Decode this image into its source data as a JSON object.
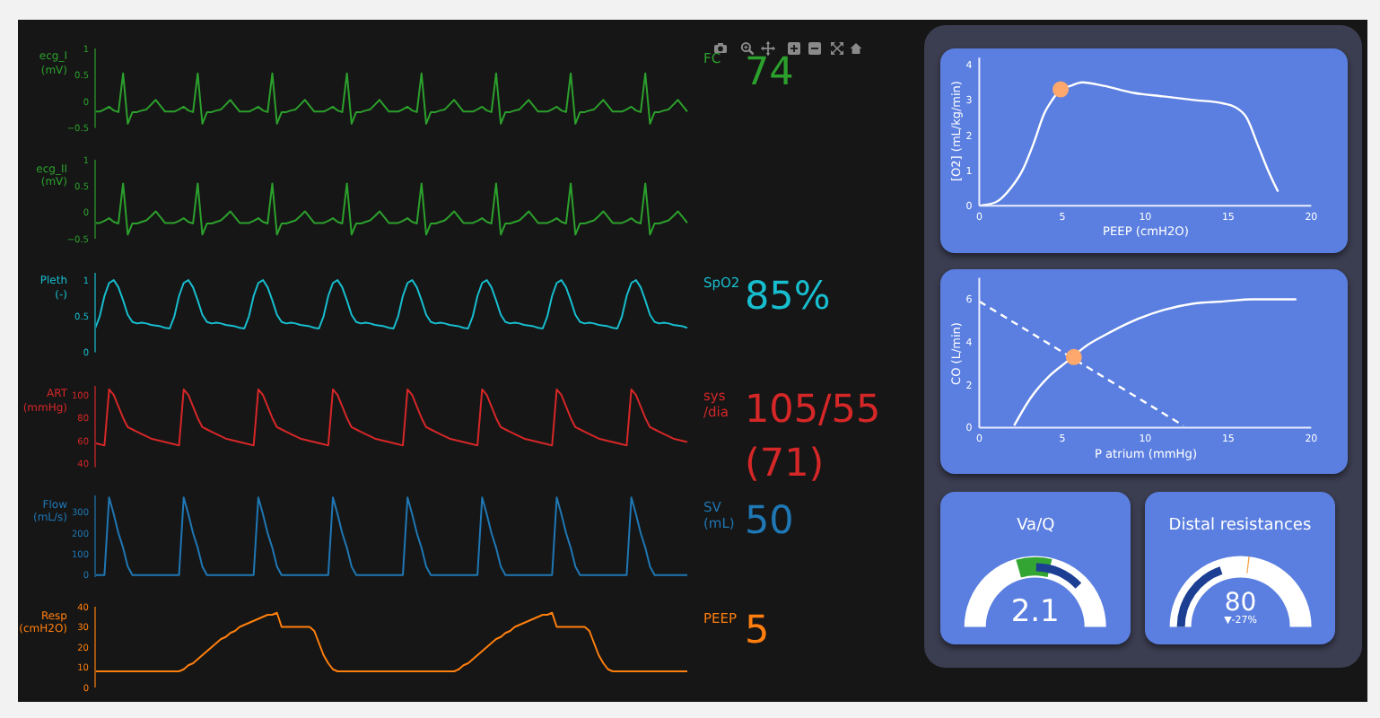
{
  "chart_data": [
    {
      "type": "line",
      "ylabel": "ecg_I (mV)",
      "tick_labels": "y",
      "ylim": [
        -0.5,
        1
      ],
      "yticks": [
        {
          "value": -0.5,
          "label": "−0.5"
        },
        0,
        0.5,
        1
      ],
      "annotations": [
        "FC",
        "74"
      ],
      "categories": [
        null,
        null,
        null,
        null,
        null,
        null,
        null,
        null,
        null,
        null,
        null,
        null,
        null,
        null,
        null,
        null,
        null,
        null,
        null,
        null,
        null,
        null,
        null,
        null,
        null,
        null,
        null,
        null,
        null,
        null,
        null,
        null,
        null,
        null,
        null,
        null,
        null,
        null,
        null,
        null,
        null,
        null,
        null,
        null,
        null,
        null,
        null,
        null,
        null,
        null,
        null,
        null,
        null,
        null,
        null,
        null,
        null,
        null,
        null,
        null,
        null,
        null,
        null,
        null,
        null,
        null,
        null,
        null,
        null,
        null,
        null,
        null,
        null,
        null,
        null,
        null,
        null,
        null,
        null,
        null,
        null,
        null,
        null,
        null,
        null,
        null,
        null,
        null,
        null,
        null,
        null,
        null,
        null,
        null,
        null,
        null,
        null,
        null,
        null,
        null,
        null,
        null,
        null,
        null,
        null,
        null,
        null,
        null,
        null,
        null,
        null,
        null,
        null,
        null,
        null,
        null,
        null,
        null,
        null,
        null,
        null,
        null,
        null,
        null,
        null,
        null,
        null,
        null
      ],
      "series": [
        {
          "color": "#2ca02c",
          "values": [
            -0.19,
            -0.19,
            -0.15,
            -0.1,
            -0.17,
            -0.2,
            0.53,
            -0.42,
            -0.2,
            -0.2,
            -0.17,
            -0.15,
            -0.06,
            0.03,
            -0.08,
            -0.19,
            -0.19,
            -0.19,
            -0.15,
            -0.1,
            -0.17,
            -0.2,
            0.53,
            -0.42,
            -0.2,
            -0.2,
            -0.17,
            -0.15,
            -0.06,
            0.03,
            -0.08,
            -0.19,
            -0.19,
            -0.19,
            -0.15,
            -0.1,
            -0.17,
            -0.2,
            0.53,
            -0.42,
            -0.2,
            -0.2,
            -0.17,
            -0.15,
            -0.06,
            0.03,
            -0.08,
            -0.19,
            -0.19,
            -0.19,
            -0.15,
            -0.1,
            -0.17,
            -0.2,
            0.53,
            -0.42,
            -0.2,
            -0.2,
            -0.17,
            -0.15,
            -0.06,
            0.03,
            -0.08,
            -0.19,
            -0.19,
            -0.19,
            -0.15,
            -0.1,
            -0.17,
            -0.2,
            0.53,
            -0.42,
            -0.2,
            -0.2,
            -0.17,
            -0.15,
            -0.06,
            0.03,
            -0.08,
            -0.19,
            -0.19,
            -0.19,
            -0.15,
            -0.1,
            -0.17,
            -0.2,
            0.53,
            -0.42,
            -0.2,
            -0.2,
            -0.17,
            -0.15,
            -0.06,
            0.03,
            -0.08,
            -0.19,
            -0.19,
            -0.19,
            -0.15,
            -0.1,
            -0.17,
            -0.2,
            0.53,
            -0.42,
            -0.2,
            -0.2,
            -0.17,
            -0.15,
            -0.06,
            0.03,
            -0.08,
            -0.19,
            -0.19,
            -0.19,
            -0.15,
            -0.1,
            -0.17,
            -0.2,
            0.53,
            -0.42,
            -0.2,
            -0.2,
            -0.17,
            -0.15,
            -0.06,
            0.03,
            -0.08,
            -0.19
          ]
        }
      ]
    },
    {
      "type": "line",
      "ylabel": "ecg_II (mV)",
      "tick_labels": "y",
      "ylim": [
        -0.5,
        1
      ],
      "yticks": [
        {
          "value": -0.5,
          "label": "−0.5"
        },
        0,
        0.5,
        1
      ],
      "categories": [
        null,
        null,
        null,
        null,
        null,
        null,
        null,
        null,
        null,
        null,
        null,
        null,
        null,
        null,
        null,
        null,
        null,
        null,
        null,
        null,
        null,
        null,
        null,
        null,
        null,
        null,
        null,
        null,
        null,
        null,
        null,
        null,
        null,
        null,
        null,
        null,
        null,
        null,
        null,
        null,
        null,
        null,
        null,
        null,
        null,
        null,
        null,
        null,
        null,
        null,
        null,
        null,
        null,
        null,
        null,
        null,
        null,
        null,
        null,
        null,
        null,
        null,
        null,
        null,
        null,
        null,
        null,
        null,
        null,
        null,
        null,
        null,
        null,
        null,
        null,
        null,
        null,
        null,
        null,
        null,
        null,
        null,
        null,
        null,
        null,
        null,
        null,
        null,
        null,
        null,
        null,
        null,
        null,
        null,
        null,
        null,
        null,
        null,
        null,
        null,
        null,
        null,
        null,
        null,
        null,
        null,
        null,
        null,
        null,
        null,
        null,
        null,
        null,
        null,
        null,
        null,
        null,
        null,
        null,
        null,
        null,
        null,
        null,
        null,
        null,
        null,
        null,
        null
      ],
      "series": [
        {
          "color": "#2ca02c",
          "values": [
            -0.2,
            -0.2,
            -0.16,
            -0.11,
            -0.18,
            -0.21,
            0.55,
            -0.42,
            -0.21,
            -0.21,
            -0.18,
            -0.15,
            -0.07,
            0.02,
            -0.09,
            -0.2,
            -0.2,
            -0.2,
            -0.16,
            -0.11,
            -0.18,
            -0.21,
            0.55,
            -0.42,
            -0.21,
            -0.21,
            -0.18,
            -0.15,
            -0.07,
            0.02,
            -0.09,
            -0.2,
            -0.2,
            -0.2,
            -0.16,
            -0.11,
            -0.18,
            -0.21,
            0.55,
            -0.42,
            -0.21,
            -0.21,
            -0.18,
            -0.15,
            -0.07,
            0.02,
            -0.09,
            -0.2,
            -0.2,
            -0.2,
            -0.16,
            -0.11,
            -0.18,
            -0.21,
            0.55,
            -0.42,
            -0.21,
            -0.21,
            -0.18,
            -0.15,
            -0.07,
            0.02,
            -0.09,
            -0.2,
            -0.2,
            -0.2,
            -0.16,
            -0.11,
            -0.18,
            -0.21,
            0.55,
            -0.42,
            -0.21,
            -0.21,
            -0.18,
            -0.15,
            -0.07,
            0.02,
            -0.09,
            -0.2,
            -0.2,
            -0.2,
            -0.16,
            -0.11,
            -0.18,
            -0.21,
            0.55,
            -0.42,
            -0.21,
            -0.21,
            -0.18,
            -0.15,
            -0.07,
            0.02,
            -0.09,
            -0.2,
            -0.2,
            -0.2,
            -0.16,
            -0.11,
            -0.18,
            -0.21,
            0.55,
            -0.42,
            -0.21,
            -0.21,
            -0.18,
            -0.15,
            -0.07,
            0.02,
            -0.09,
            -0.2,
            -0.2,
            -0.2,
            -0.16,
            -0.11,
            -0.18,
            -0.21,
            0.55,
            -0.42,
            -0.21,
            -0.21,
            -0.18,
            -0.15,
            -0.07,
            0.02,
            -0.09,
            -0.2
          ]
        }
      ]
    },
    {
      "type": "line",
      "ylabel": "Pleth (-)",
      "tick_labels": "y",
      "ylim": [
        0,
        1.1
      ],
      "yticks": [
        0,
        0.5,
        1
      ],
      "annotations": [
        "SpO2",
        "85%"
      ],
      "categories": [
        null,
        null,
        null,
        null,
        null,
        null,
        null,
        null,
        null,
        null,
        null,
        null,
        null,
        null,
        null,
        null,
        null,
        null,
        null,
        null,
        null,
        null,
        null,
        null,
        null,
        null,
        null,
        null,
        null,
        null,
        null,
        null,
        null,
        null,
        null,
        null,
        null,
        null,
        null,
        null,
        null,
        null,
        null,
        null,
        null,
        null,
        null,
        null,
        null,
        null,
        null,
        null,
        null,
        null,
        null,
        null,
        null,
        null,
        null,
        null,
        null,
        null,
        null,
        null,
        null,
        null,
        null,
        null,
        null,
        null,
        null,
        null,
        null,
        null,
        null,
        null,
        null,
        null,
        null,
        null,
        null,
        null,
        null,
        null,
        null,
        null,
        null,
        null,
        null,
        null,
        null,
        null,
        null,
        null,
        null,
        null,
        null,
        null,
        null,
        null,
        null,
        null,
        null,
        null,
        null,
        null,
        null,
        null,
        null,
        null,
        null,
        null,
        null,
        null,
        null,
        null,
        null,
        null,
        null,
        null,
        null,
        null,
        null,
        null,
        null,
        null,
        null,
        null
      ],
      "series": [
        {
          "color": "#17becf",
          "values": [
            0.33,
            0.5,
            0.78,
            0.96,
            1,
            0.9,
            0.72,
            0.52,
            0.42,
            0.4,
            0.41,
            0.4,
            0.38,
            0.37,
            0.36,
            0.34,
            0.33,
            0.5,
            0.78,
            0.96,
            1,
            0.9,
            0.72,
            0.52,
            0.42,
            0.4,
            0.41,
            0.4,
            0.38,
            0.37,
            0.36,
            0.34,
            0.33,
            0.5,
            0.78,
            0.96,
            1,
            0.9,
            0.72,
            0.52,
            0.42,
            0.4,
            0.41,
            0.4,
            0.38,
            0.37,
            0.36,
            0.34,
            0.33,
            0.5,
            0.78,
            0.96,
            1,
            0.9,
            0.72,
            0.52,
            0.42,
            0.4,
            0.41,
            0.4,
            0.38,
            0.37,
            0.36,
            0.34,
            0.33,
            0.5,
            0.78,
            0.96,
            1,
            0.9,
            0.72,
            0.52,
            0.42,
            0.4,
            0.41,
            0.4,
            0.38,
            0.37,
            0.36,
            0.34,
            0.33,
            0.5,
            0.78,
            0.96,
            1,
            0.9,
            0.72,
            0.52,
            0.42,
            0.4,
            0.41,
            0.4,
            0.38,
            0.37,
            0.36,
            0.34,
            0.33,
            0.5,
            0.78,
            0.96,
            1,
            0.9,
            0.72,
            0.52,
            0.42,
            0.4,
            0.41,
            0.4,
            0.38,
            0.37,
            0.36,
            0.34,
            0.33,
            0.5,
            0.78,
            0.96,
            1,
            0.9,
            0.72,
            0.52,
            0.42,
            0.4,
            0.41,
            0.4,
            0.38,
            0.37,
            0.36,
            0.34
          ]
        }
      ]
    },
    {
      "type": "line",
      "ylabel": "ART (mmHg)",
      "tick_labels": "y",
      "ylim": [
        37,
        108
      ],
      "yticks": [
        40,
        60,
        80,
        100
      ],
      "annotations": [
        "sys /dia",
        "105/55 (71)"
      ],
      "categories": [
        null,
        null,
        null,
        null,
        null,
        null,
        null,
        null,
        null,
        null,
        null,
        null,
        null,
        null,
        null,
        null,
        null,
        null,
        null,
        null,
        null,
        null,
        null,
        null,
        null,
        null,
        null,
        null,
        null,
        null,
        null,
        null,
        null,
        null,
        null,
        null,
        null,
        null,
        null,
        null,
        null,
        null,
        null,
        null,
        null,
        null,
        null,
        null,
        null,
        null,
        null,
        null,
        null,
        null,
        null,
        null,
        null,
        null,
        null,
        null,
        null,
        null,
        null,
        null,
        null,
        null,
        null,
        null,
        null,
        null,
        null,
        null,
        null,
        null,
        null,
        null,
        null,
        null,
        null,
        null,
        null,
        null,
        null,
        null,
        null,
        null,
        null,
        null,
        null,
        null,
        null,
        null,
        null,
        null,
        null,
        null,
        null,
        null,
        null,
        null,
        null,
        null,
        null,
        null,
        null,
        null,
        null,
        null,
        null,
        null,
        null,
        null,
        null,
        null,
        null,
        null,
        null,
        null,
        null,
        null,
        null,
        null,
        null,
        null,
        null,
        null,
        null,
        null
      ],
      "series": [
        {
          "color": "#d62728",
          "values": [
            58,
            57,
            56,
            105,
            100,
            90,
            80,
            72,
            70,
            68,
            66,
            64,
            62,
            61,
            60,
            59,
            58,
            57,
            56,
            105,
            100,
            90,
            80,
            72,
            70,
            68,
            66,
            64,
            62,
            61,
            60,
            59,
            58,
            57,
            56,
            105,
            100,
            90,
            80,
            72,
            70,
            68,
            66,
            64,
            62,
            61,
            60,
            59,
            58,
            57,
            56,
            105,
            100,
            90,
            80,
            72,
            70,
            68,
            66,
            64,
            62,
            61,
            60,
            59,
            58,
            57,
            56,
            105,
            100,
            90,
            80,
            72,
            70,
            68,
            66,
            64,
            62,
            61,
            60,
            59,
            58,
            57,
            56,
            105,
            100,
            90,
            80,
            72,
            70,
            68,
            66,
            64,
            62,
            61,
            60,
            59,
            58,
            57,
            56,
            105,
            100,
            90,
            80,
            72,
            70,
            68,
            66,
            64,
            62,
            61,
            60,
            59,
            58,
            57,
            56,
            105,
            100,
            90,
            80,
            72,
            70,
            68,
            66,
            64,
            62,
            61,
            60,
            59
          ]
        }
      ]
    },
    {
      "type": "line",
      "ylabel": "Flow (mL/s)",
      "tick_labels": "y",
      "ylim": [
        -10,
        380
      ],
      "yticks": [
        0,
        100,
        200,
        300
      ],
      "annotations": [
        "SV (mL)",
        "50"
      ],
      "categories": [
        null,
        null,
        null,
        null,
        null,
        null,
        null,
        null,
        null,
        null,
        null,
        null,
        null,
        null,
        null,
        null,
        null,
        null,
        null,
        null,
        null,
        null,
        null,
        null,
        null,
        null,
        null,
        null,
        null,
        null,
        null,
        null,
        null,
        null,
        null,
        null,
        null,
        null,
        null,
        null,
        null,
        null,
        null,
        null,
        null,
        null,
        null,
        null,
        null,
        null,
        null,
        null,
        null,
        null,
        null,
        null,
        null,
        null,
        null,
        null,
        null,
        null,
        null,
        null,
        null,
        null,
        null,
        null,
        null,
        null,
        null,
        null,
        null,
        null,
        null,
        null,
        null,
        null,
        null,
        null,
        null,
        null,
        null,
        null,
        null,
        null,
        null,
        null,
        null,
        null,
        null,
        null,
        null,
        null,
        null,
        null,
        null,
        null,
        null,
        null,
        null,
        null,
        null,
        null,
        null,
        null,
        null,
        null,
        null,
        null,
        null,
        null,
        null,
        null,
        null,
        null,
        null,
        null,
        null,
        null,
        null,
        null,
        null,
        null,
        null,
        null,
        null,
        null
      ],
      "series": [
        {
          "color": "#1f77b4",
          "values": [
            0,
            0,
            0,
            370,
            290,
            200,
            130,
            40,
            0,
            0,
            0,
            0,
            0,
            0,
            0,
            0,
            0,
            0,
            0,
            370,
            290,
            200,
            130,
            40,
            0,
            0,
            0,
            0,
            0,
            0,
            0,
            0,
            0,
            0,
            0,
            370,
            290,
            200,
            130,
            40,
            0,
            0,
            0,
            0,
            0,
            0,
            0,
            0,
            0,
            0,
            0,
            370,
            290,
            200,
            130,
            40,
            0,
            0,
            0,
            0,
            0,
            0,
            0,
            0,
            0,
            0,
            0,
            370,
            290,
            200,
            130,
            40,
            0,
            0,
            0,
            0,
            0,
            0,
            0,
            0,
            0,
            0,
            0,
            370,
            290,
            200,
            130,
            40,
            0,
            0,
            0,
            0,
            0,
            0,
            0,
            0,
            0,
            0,
            0,
            370,
            290,
            200,
            130,
            40,
            0,
            0,
            0,
            0,
            0,
            0,
            0,
            0,
            0,
            0,
            0,
            370,
            290,
            200,
            130,
            40,
            0,
            0,
            0,
            0,
            0,
            0,
            0,
            0
          ]
        }
      ]
    },
    {
      "type": "line",
      "ylabel": "Resp (cmH2O)",
      "tick_labels": "y",
      "ylim": [
        0,
        40
      ],
      "yticks": [
        0,
        10,
        20,
        30,
        40
      ],
      "annotations": [
        "PEEP",
        "5"
      ],
      "categories": [
        null,
        null,
        null,
        null,
        null,
        null,
        null,
        null,
        null,
        null,
        null,
        null,
        null,
        null,
        null,
        null,
        null,
        null,
        null,
        null,
        null,
        null,
        null,
        null,
        null,
        null,
        null,
        null,
        null,
        null,
        null,
        null,
        null,
        null,
        null,
        null,
        null,
        null,
        null,
        null,
        null,
        null,
        null,
        null,
        null,
        null,
        null,
        null,
        null,
        null,
        null,
        null,
        null,
        null,
        null,
        null,
        null,
        null,
        null,
        null,
        null,
        null,
        null,
        null,
        null,
        null,
        null,
        null,
        null,
        null,
        null,
        null,
        null,
        null,
        null,
        null,
        null,
        null,
        null,
        null,
        null,
        null,
        null,
        null,
        null,
        null,
        null,
        null,
        null,
        null,
        null,
        null,
        null,
        null,
        null,
        null,
        null,
        null,
        null,
        null,
        null,
        null,
        null,
        null,
        null,
        null,
        null,
        null,
        null,
        null,
        null,
        null,
        null,
        null,
        null,
        null,
        null,
        null,
        null,
        null,
        null,
        null,
        null,
        null,
        null,
        null,
        null,
        null
      ],
      "series": [
        {
          "color": "#ff7f0e",
          "values": [
            8,
            8,
            8,
            8,
            8,
            8,
            8,
            8,
            8,
            8,
            8,
            8,
            8,
            8,
            8,
            8,
            8,
            8,
            8,
            9,
            11,
            12,
            14,
            16,
            18,
            20,
            22,
            24,
            25,
            27,
            28,
            30,
            31,
            32,
            33,
            34,
            35,
            36,
            36,
            37,
            30,
            30,
            30,
            30,
            30,
            30,
            30,
            28,
            22,
            16,
            12,
            9,
            8,
            8,
            8,
            8,
            8,
            8,
            8,
            8,
            8,
            8,
            8,
            8,
            8,
            8,
            8,
            8,
            8,
            8,
            8,
            8,
            8,
            8,
            8,
            8,
            8,
            8,
            9,
            11,
            12,
            14,
            16,
            18,
            20,
            22,
            24,
            25,
            27,
            28,
            30,
            31,
            32,
            33,
            34,
            35,
            36,
            36,
            37,
            30,
            30,
            30,
            30,
            30,
            30,
            30,
            28,
            22,
            16,
            12,
            9,
            8,
            8,
            8,
            8,
            8,
            8,
            8,
            8,
            8,
            8,
            8,
            8,
            8,
            8,
            8,
            8,
            8
          ]
        }
      ]
    },
    {
      "type": "line",
      "xlabel": "PEEP (cmH2O)",
      "ylabel": "[O2] (mL/kg/min)",
      "xlim": [
        0,
        20
      ],
      "xticks": [
        0,
        5,
        10,
        15,
        20
      ],
      "ylim": [
        0,
        4.2
      ],
      "yticks": [
        0,
        1,
        2,
        3,
        4
      ],
      "series": [
        {
          "color": "#ffffff",
          "x": [
            0,
            1,
            1.9,
            2.6,
            3.3,
            3.9,
            4.4,
            4.9,
            5.5,
            6.2,
            7.5,
            9.3,
            11.1,
            12.9,
            14.7,
            15.4,
            16.1,
            16.8,
            17.4,
            18
          ],
          "values": [
            0,
            0.1,
            0.5,
            1,
            1.8,
            2.6,
            3,
            3.3,
            3.4,
            3.5,
            3.4,
            3.2,
            3.1,
            3,
            2.9,
            2.8,
            2.5,
            1.7,
            1,
            0.4
          ]
        },
        {
          "type": "scatter",
          "color": "#ffa86e",
          "marker": "circle",
          "x": [
            4.9
          ],
          "values": [
            3.3
          ]
        }
      ]
    },
    {
      "type": "line",
      "xlabel": "P atrium (mmHg)",
      "ylabel": "CO (L/min)",
      "xlim": [
        0,
        20
      ],
      "xticks": [
        0,
        5,
        10,
        15,
        20
      ],
      "ylim": [
        0,
        7
      ],
      "yticks": [
        0,
        2,
        4,
        6
      ],
      "series": [
        {
          "color": "#ffffff",
          "x": [
            2.1,
            3.1,
            4.2,
            5.3,
            6.4,
            7.5,
            9.3,
            11.1,
            12.9,
            14.7,
            16.5,
            19.1
          ],
          "values": [
            0.1,
            1.4,
            2.4,
            3.1,
            3.8,
            4.3,
            5,
            5.5,
            5.8,
            5.9,
            6,
            6
          ]
        },
        {
          "color": "#ffffff",
          "line_style": "dashed",
          "x": [
            0,
            12.3
          ],
          "values": [
            5.9,
            0.1
          ]
        },
        {
          "type": "scatter",
          "color": "#ffa86e",
          "marker": "circle",
          "x": [
            5.7
          ],
          "values": [
            3.3
          ]
        }
      ]
    },
    {
      "type": "other",
      "title": "Va/Q",
      "annotations": [
        "2.1"
      ]
    },
    {
      "type": "other",
      "title": "Distal resistances",
      "annotations": [
        "80",
        "▼-27%"
      ]
    }
  ]
}
